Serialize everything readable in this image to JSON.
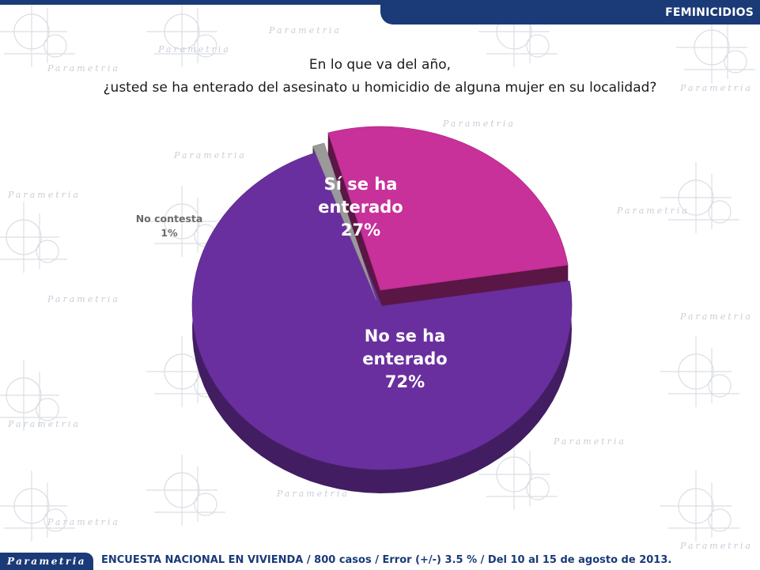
{
  "header": {
    "section": "FEMINICIDIOS"
  },
  "question": {
    "line1": "En lo que va del año,",
    "line2": "¿usted se ha enterado del asesinato u homicidio de alguna  mujer en su localidad?"
  },
  "chart_data": {
    "type": "pie",
    "style": "3d-exploded",
    "slices": [
      {
        "label_lines": [
          "Sí se ha",
          "enterado"
        ],
        "value": 27,
        "value_label": "27%",
        "color": "#c8309a"
      },
      {
        "label_lines": [
          "No se ha",
          "enterado"
        ],
        "value": 72,
        "value_label": "72%",
        "color": "#6a2f9e"
      },
      {
        "label_lines": [
          "No contesta"
        ],
        "value": 1,
        "value_label": "1%",
        "color": "#9a9a9a"
      }
    ]
  },
  "watermark": {
    "text": "Parametria"
  },
  "footer": {
    "logo": "Parametria",
    "note": "ENCUESTA NACIONAL EN VIVIENDA / 800 casos / Error (+/-) 3.5 % / Del 10 al 15 de agosto de 2013."
  }
}
